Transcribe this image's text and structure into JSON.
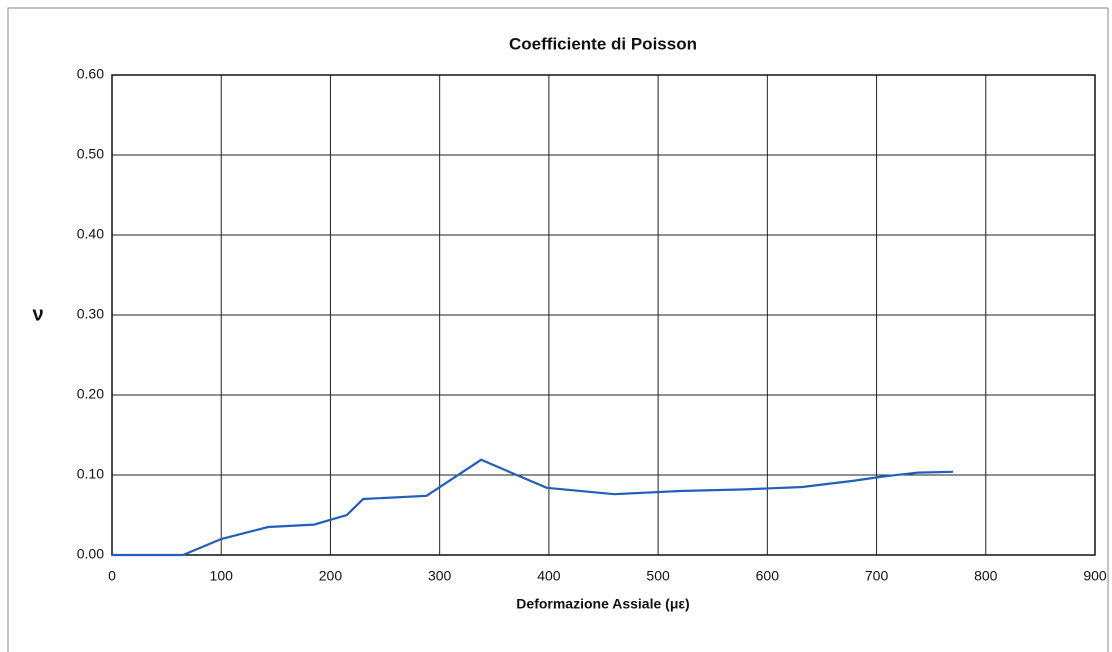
{
  "chart_data": {
    "type": "line",
    "title": "Coefficiente di Poisson",
    "x_label": "Deformazione Assiale (με)",
    "y_label": "ν",
    "x": [
      0,
      65,
      100,
      143,
      185,
      215,
      230,
      288,
      338,
      398,
      460,
      520,
      580,
      632,
      680,
      705,
      738,
      770
    ],
    "series": [
      {
        "color": "#2060b8",
        "values": [
          0,
          0,
          0.02,
          0.035,
          0.038,
          0.05,
          0.07,
          0.074,
          0.119,
          0.084,
          0.076,
          0.08,
          0.082,
          0.085,
          0.093,
          0.098,
          0.103,
          0.104
        ]
      }
    ],
    "xlim": [
      0,
      900
    ],
    "xticks": [
      0,
      100,
      200,
      300,
      400,
      500,
      600,
      700,
      800,
      900
    ],
    "ylim": [
      0,
      0.6
    ],
    "yticks": [
      {
        "value": 0,
        "label": "0.00"
      },
      {
        "value": 0.1,
        "label": "0.10"
      },
      {
        "value": 0.2,
        "label": "0.20"
      },
      {
        "value": 0.3,
        "label": "0.30"
      },
      {
        "value": 0.4,
        "label": "0.40"
      },
      {
        "value": 0.5,
        "label": "0.50"
      },
      {
        "value": 0.6,
        "label": "0.60"
      }
    ],
    "grid": true
  }
}
